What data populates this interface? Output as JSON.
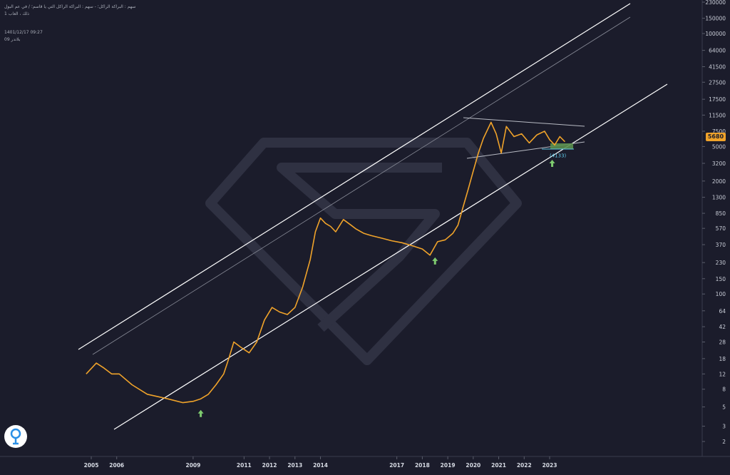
{
  "header": {
    "title": "سهم : البراكة الراكل؛ - سهم : البراكة الراكل التي يا قاسم؛ / في عم البول",
    "subtitle": "ذلك ، العاب 1",
    "meta": "1401/12/17 09:27",
    "meta2": "بلاندر 09"
  },
  "colors": {
    "background": "#1b1c2b",
    "price_line": "#f0a32a",
    "channel": "#ffffff",
    "arrow": "#7ecb6f",
    "zone": "#5a8f4e",
    "target_label": "#5ec7e6"
  },
  "chart_data": {
    "type": "line",
    "scale": "log",
    "ylim": [
      1.5,
      250000
    ],
    "y_ticks": [
      2,
      3,
      5,
      8,
      12,
      18,
      28,
      42,
      64,
      100,
      150,
      230,
      370,
      570,
      850,
      1300,
      2000,
      3200,
      5000,
      7500,
      11500,
      17500,
      27500,
      41500,
      64000,
      100000,
      150000,
      230000
    ],
    "y_tick_labels": [
      "2",
      "3",
      "5",
      "8",
      "12",
      "18",
      "28",
      "42",
      "64",
      "100",
      "150",
      "230",
      "370",
      "570",
      "850",
      "1300",
      "2000",
      "3200",
      "5000",
      "7500",
      "11500",
      "17500",
      "27500",
      "41500",
      "64000",
      "100000",
      "150000",
      "230000"
    ],
    "x_ticks": [
      2005,
      2006,
      2009,
      2011,
      2012,
      2013,
      2014,
      2017,
      2018,
      2019,
      2020,
      2021,
      2022,
      2023
    ],
    "x_tick_labels": [
      "2005",
      "2006",
      "2009",
      "2011",
      "2012",
      "2013",
      "2014",
      "2017",
      "2018",
      "2019",
      "2020",
      "2021",
      "2022",
      "2023"
    ],
    "series": [
      {
        "x": [
          2004.8,
          2005.2,
          2005.5,
          2005.8,
          2006.1,
          2006.6,
          2007.2,
          2008.0,
          2008.6,
          2009.0,
          2009.3,
          2009.6,
          2009.9,
          2010.2,
          2010.4,
          2010.6,
          2010.9,
          2011.2,
          2011.5,
          2011.8,
          2012.1,
          2012.4,
          2012.7,
          2013.0,
          2013.3,
          2013.6,
          2013.8,
          2014.0,
          2014.2,
          2014.4,
          2014.6,
          2014.9,
          2015.2,
          2015.4,
          2015.7,
          2016.0,
          2016.4,
          2016.8,
          2017.2,
          2017.6,
          2018.0,
          2018.3,
          2018.6,
          2018.9,
          2019.2,
          2019.4,
          2019.6,
          2019.8,
          2020.0,
          2020.2,
          2020.4,
          2020.7,
          2020.9,
          2021.1,
          2021.3,
          2021.6,
          2021.9,
          2022.2,
          2022.5,
          2022.8,
          2023.0,
          2023.2,
          2023.4,
          2023.6
        ],
        "y": [
          12,
          16,
          14,
          12,
          12,
          9,
          7,
          6.2,
          5.6,
          5.8,
          6.2,
          7,
          9,
          12,
          18,
          28,
          24,
          21,
          28,
          50,
          70,
          62,
          58,
          70,
          120,
          250,
          520,
          750,
          650,
          600,
          520,
          720,
          620,
          560,
          500,
          470,
          440,
          410,
          390,
          360,
          330,
          280,
          400,
          420,
          500,
          620,
          1000,
          1600,
          2600,
          4200,
          6200,
          9500,
          7000,
          4200,
          8500,
          6500,
          7000,
          5500,
          6800,
          7500,
          6000,
          5200,
          6500,
          5680
        ]
      }
    ],
    "annotations": [
      {
        "type": "arrow-up",
        "x": 2009.3,
        "y": 4.2
      },
      {
        "type": "arrow-up",
        "x": 2018.5,
        "y": 240
      },
      {
        "type": "arrow-up",
        "x": 2023.1,
        "y": 3200
      },
      {
        "type": "label",
        "text": "(4133)",
        "x": 2023.0,
        "y": 3750
      }
    ],
    "last_price": "5680"
  }
}
